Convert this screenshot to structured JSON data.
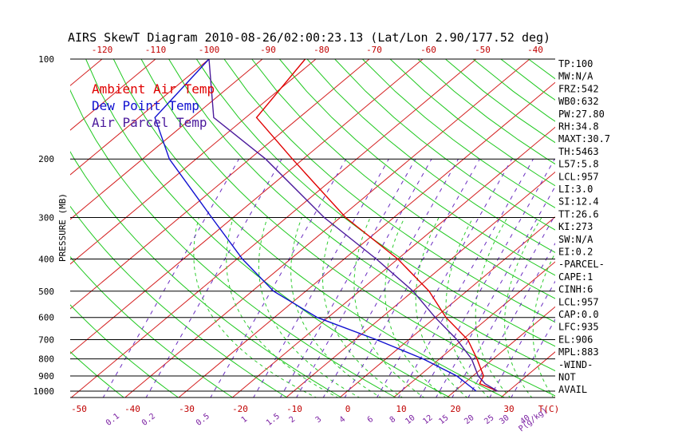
{
  "title": "AIRS SkewT Diagram 2010-08-26/02:00:23.13 (Lat/Lon 2.90/177.52 deg)",
  "ylabel": "PRESSURE (MB)",
  "legend": {
    "ambient": "Ambient Air Temp",
    "dewpoint": "Dew Point Temp",
    "parcel": "Air Parcel Temp"
  },
  "colors": {
    "ambient": "#e00000",
    "dewpoint": "#1010d0",
    "parcel": "#4b1a9c",
    "isotherm": "#d42020",
    "dry_adiabat": "#1ec81e",
    "moist_adiabat": "#2ecc2e",
    "mixing_ratio": "#6a2cc0"
  },
  "chart_data": {
    "type": "skewt",
    "pressure_levels": [
      100,
      200,
      300,
      400,
      500,
      600,
      700,
      800,
      900,
      1000
    ],
    "pressure_tick_labels": [
      "100",
      "200",
      "300",
      "400",
      "500",
      "600",
      "700",
      "800",
      "900",
      "1000"
    ],
    "top_temp_labels": [
      "-120",
      "-110",
      "-100",
      "-90",
      "-80",
      "-70",
      "-60",
      "-50",
      "-40"
    ],
    "bottom_temp_labels": [
      "-50",
      "-40",
      "-30",
      "-20",
      "-10",
      "0",
      "10",
      "20",
      "30",
      "T(C)"
    ],
    "mixing_ratio_labels": [
      "0.1",
      "0.2",
      "0.5",
      "1",
      "1.5",
      "2",
      "3",
      "4",
      "6",
      "8",
      "10",
      "12",
      "15",
      "20",
      "25",
      "30",
      "40",
      "P(g/kg)"
    ],
    "series": [
      {
        "name": "Ambient Air Temp",
        "points": [
          [
            100,
            -82
          ],
          [
            150,
            -78
          ],
          [
            200,
            -62
          ],
          [
            300,
            -39
          ],
          [
            400,
            -20
          ],
          [
            500,
            -7
          ],
          [
            600,
            2
          ],
          [
            700,
            11
          ],
          [
            800,
            17
          ],
          [
            900,
            22
          ],
          [
            950,
            23
          ],
          [
            1000,
            28
          ]
        ]
      },
      {
        "name": "Dew Point Temp",
        "points": [
          [
            100,
            -100
          ],
          [
            150,
            -97
          ],
          [
            200,
            -85
          ],
          [
            300,
            -64
          ],
          [
            400,
            -49
          ],
          [
            500,
            -36
          ],
          [
            600,
            -22
          ],
          [
            700,
            -6
          ],
          [
            800,
            7
          ],
          [
            900,
            17
          ],
          [
            1000,
            24
          ]
        ]
      },
      {
        "name": "Air Parcel Temp",
        "points": [
          [
            100,
            -100
          ],
          [
            150,
            -86
          ],
          [
            200,
            -67
          ],
          [
            300,
            -43
          ],
          [
            400,
            -24
          ],
          [
            500,
            -10
          ],
          [
            600,
            0
          ],
          [
            700,
            9
          ],
          [
            800,
            16
          ],
          [
            900,
            21
          ],
          [
            950,
            24
          ],
          [
            1000,
            28
          ]
        ]
      }
    ]
  },
  "indices": [
    "TP:100",
    "MW:N/A",
    "FRZ:542",
    "WB0:632",
    "PW:27.80",
    "RH:34.8",
    "MAXT:30.7",
    "TH:5463",
    "L57:5.8",
    "LCL:957",
    "LI:3.0",
    "SI:12.4",
    "TT:26.6",
    "KI:273",
    "SW:N/A",
    "EI:0.2",
    "-PARCEL-",
    "CAPE:1",
    "CINH:6",
    "LCL:957",
    "CAP:0.0",
    "LFC:935",
    "EL:906",
    "MPL:883",
    "-WIND-",
    "NOT",
    "AVAIL"
  ]
}
